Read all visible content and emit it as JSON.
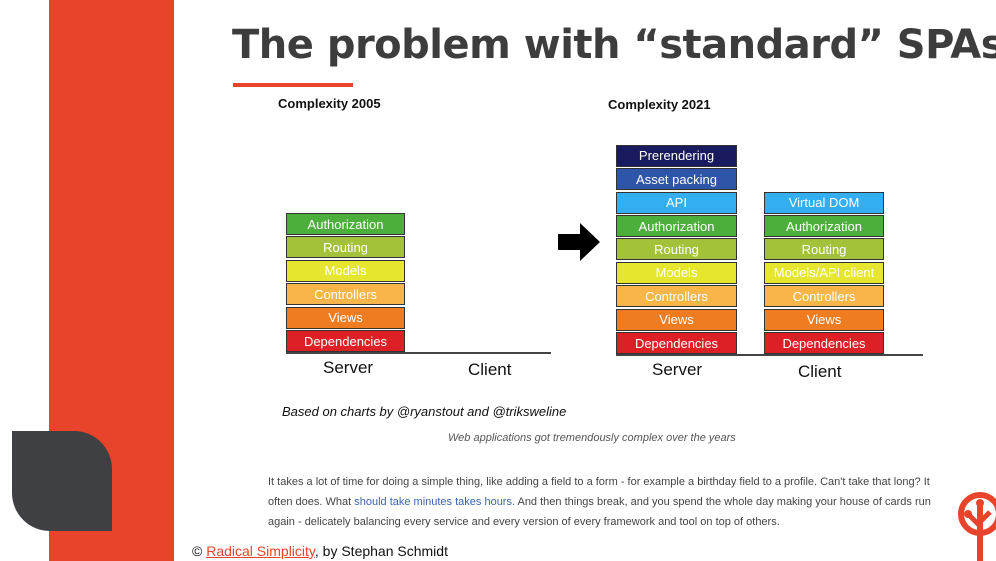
{
  "slide": {
    "title": "The problem with “standard” SPAs",
    "colors": {
      "accent": "#e8442b",
      "dark": "#3f4044",
      "link": "#3b63b0"
    }
  },
  "diagram_2005": {
    "title": "Complexity 2005",
    "server_blocks": [
      {
        "label": "Authorization",
        "color": "#4caf3b"
      },
      {
        "label": "Routing",
        "color": "#a3c23a"
      },
      {
        "label": "Models",
        "color": "#e6e62e"
      },
      {
        "label": "Controllers",
        "color": "#f7b54a"
      },
      {
        "label": "Views",
        "color": "#f07c22"
      },
      {
        "label": "Dependencies",
        "color": "#dd1f26"
      }
    ],
    "server_label": "Server",
    "client_label": "Client"
  },
  "arrow": {
    "icon": "arrow-right-icon"
  },
  "diagram_2021": {
    "title": "Complexity 2021",
    "server_blocks": [
      {
        "label": "Prerendering",
        "color": "#1a1a5e"
      },
      {
        "label": "Asset packing",
        "color": "#2e55a8"
      },
      {
        "label": "API",
        "color": "#33aef0"
      },
      {
        "label": "Authorization",
        "color": "#4caf3b"
      },
      {
        "label": "Routing",
        "color": "#a3c23a"
      },
      {
        "label": "Models",
        "color": "#e6e62e"
      },
      {
        "label": "Controllers",
        "color": "#f7b54a"
      },
      {
        "label": "Views",
        "color": "#f07c22"
      },
      {
        "label": "Dependencies",
        "color": "#dd1f26"
      }
    ],
    "client_blocks": [
      {
        "label": "Virtual DOM",
        "color": "#33aef0"
      },
      {
        "label": "Authorization",
        "color": "#4caf3b"
      },
      {
        "label": "Routing",
        "color": "#a3c23a"
      },
      {
        "label": "Models/API client",
        "color": "#e6e62e"
      },
      {
        "label": "Controllers",
        "color": "#f7b54a"
      },
      {
        "label": "Views",
        "color": "#f07c22"
      },
      {
        "label": "Dependencies",
        "color": "#dd1f26"
      }
    ],
    "server_label": "Server",
    "client_label": "Client"
  },
  "credit": "Based on charts by @ryanstout and @triksweline",
  "caption": "Web applications got tremendously complex over the years",
  "paragraph": {
    "before": "It takes a lot of time for doing a simple thing, like adding a field to a form - for example a birthday field to a profile. Can't take that long? It often does. What ",
    "highlight": "should take minutes takes hours.",
    "after": " And then things break, and you spend the whole day making your house of cards run again - delicately balancing every service and every version of every framework and tool on top of others."
  },
  "footer": {
    "copyright": "©",
    "link": "Radical Simplicity",
    "suffix": ", by Stephan Schmidt"
  },
  "logo": {
    "icon": "tree-logo-icon"
  }
}
